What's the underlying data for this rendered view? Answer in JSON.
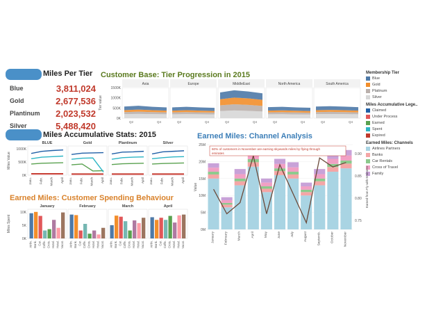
{
  "kpi": {
    "title": "Miles Per Tier",
    "items": [
      {
        "label": "Blue",
        "value": "3,811,024"
      },
      {
        "label": "Gold",
        "value": "2,677,536"
      },
      {
        "label": "Plantinum",
        "value": "2,023,532"
      },
      {
        "label": "Silver",
        "value": "5,488,420"
      }
    ]
  },
  "colors": {
    "blue": "#4e79a7",
    "gold": "#f28e2b",
    "platinum": "#bab0ac",
    "silver": "#d7d7d7",
    "claimed": "#1f5fa6",
    "under_process": "#e15759",
    "earned": "#59a14f",
    "spent": "#2bb5c4",
    "expired": "#c0392b",
    "airline": "#a9d4e3",
    "banks": "#f4a6a6",
    "car": "#8cc98c",
    "cross": "#f1a0c4",
    "family": "#c8a2d8",
    "title_green": "#5a7a1e",
    "title_orange": "#d9822b",
    "title_blue": "#3d7fb8"
  },
  "chart_data": [
    {
      "id": "tier-progression",
      "type": "area",
      "title": "Customer Base: Tier Progression in 2015",
      "ylabel": "Tier value",
      "yticks": [
        "1500K",
        "1000K",
        "500K",
        "0K"
      ],
      "xticks": [
        "Q2",
        "Q4"
      ],
      "regions": [
        "Asia",
        "Europe",
        "MiddleEast",
        "North America",
        "South America"
      ],
      "ylim": [
        0,
        1500
      ],
      "x": [
        "Q1",
        "Q2",
        "Q3",
        "Q4"
      ],
      "series_names": [
        "Silver",
        "Platinum",
        "Gold",
        "Blue"
      ],
      "regions_data": [
        {
          "name": "Asia",
          "series": [
            [
              200,
              210,
              200,
              190
            ],
            [
              100,
              110,
              100,
              95
            ],
            [
              90,
              100,
              90,
              85
            ],
            [
              180,
              190,
              170,
              160
            ]
          ]
        },
        {
          "name": "Europe",
          "series": [
            [
              190,
              200,
              190,
              185
            ],
            [
              95,
              100,
              95,
              90
            ],
            [
              85,
              90,
              85,
              80
            ],
            [
              160,
              170,
              160,
              150
            ]
          ]
        },
        {
          "name": "MiddleEast",
          "series": [
            [
              350,
              380,
              360,
              330
            ],
            [
              280,
              300,
              290,
              270
            ],
            [
              300,
              330,
              320,
              300
            ],
            [
              330,
              360,
              340,
              320
            ]
          ]
        },
        {
          "name": "North America",
          "series": [
            [
              190,
              195,
              185,
              180
            ],
            [
              95,
              100,
              95,
              90
            ],
            [
              85,
              90,
              85,
              80
            ],
            [
              170,
              175,
              165,
              160
            ]
          ]
        },
        {
          "name": "South America",
          "series": [
            [
              200,
              205,
              200,
              190
            ],
            [
              100,
              105,
              100,
              95
            ],
            [
              90,
              95,
              90,
              85
            ],
            [
              180,
              185,
              175,
              170
            ]
          ]
        }
      ]
    },
    {
      "id": "accumulative-stats",
      "type": "line",
      "title": "Miles Accumulative Stats: 2015",
      "ylabel": "Miles Value",
      "yticks": [
        "1000K",
        "500K",
        "0K"
      ],
      "ylim": [
        0,
        1100
      ],
      "tiers": [
        "BLUE",
        "Gold",
        "Plantinum",
        "Silver"
      ],
      "x": [
        "Janu.",
        "Febr.",
        "March",
        "April"
      ],
      "series_names": [
        "Claimed",
        "Under Process",
        "Earned",
        "Spent",
        "Expired"
      ],
      "tier_data": [
        {
          "name": "BLUE",
          "series": [
            [
              820,
              900,
              930,
              950
            ],
            [
              40,
              40,
              40,
              40
            ],
            [
              420,
              450,
              460,
              470
            ],
            [
              620,
              680,
              700,
              720
            ],
            [
              60,
              60,
              60,
              60
            ]
          ]
        },
        {
          "name": "Gold",
          "series": [
            [
              780,
              830,
              840,
              850
            ],
            [
              30,
              30,
              30,
              30
            ],
            [
              390,
              420,
              160,
              170
            ],
            [
              600,
              640,
              650,
              120
            ],
            [
              50,
              50,
              50,
              50
            ]
          ]
        },
        {
          "name": "Plantinum",
          "series": [
            [
              800,
              870,
              880,
              900
            ],
            [
              30,
              30,
              30,
              30
            ],
            [
              400,
              430,
              440,
              450
            ],
            [
              600,
              660,
              680,
              690
            ],
            [
              50,
              50,
              50,
              50
            ]
          ]
        },
        {
          "name": "Silver",
          "series": [
            [
              800,
              880,
              900,
              920
            ],
            [
              30,
              30,
              30,
              30
            ],
            [
              420,
              440,
              450,
              460
            ],
            [
              620,
              660,
              690,
              700
            ],
            [
              50,
              50,
              50,
              50
            ]
          ]
        }
      ]
    },
    {
      "id": "spending-behaviour",
      "type": "bar",
      "title": "Earned Miles: Customer Spending Behaviour",
      "ylabel": "Miles Spent",
      "yticks": [
        "10K",
        "5K",
        "0K"
      ],
      "ylim": [
        0,
        11
      ],
      "months": [
        "January",
        "February",
        "March",
        "April"
      ],
      "categories": [
        "Airlin.",
        "Bank.",
        "Car.",
        "Coffe.",
        "Crois.",
        "Hotel.",
        "Hotel.",
        "Vacat."
      ],
      "values": [
        [
          9.5,
          10,
          8.5,
          3,
          3.5,
          7,
          4,
          9.8
        ],
        [
          9,
          8.8,
          3,
          5.5,
          1.8,
          3,
          1.5,
          4
        ],
        [
          5,
          8.6,
          8.2,
          6.5,
          3,
          6.8,
          5.8,
          7.8
        ],
        [
          8,
          7,
          7.8,
          7,
          8.5,
          6,
          8.7,
          9
        ]
      ],
      "bar_colors": [
        "#4e79a7",
        "#f28e2b",
        "#e15759",
        "#76b7b2",
        "#59a14f",
        "#af7aa1",
        "#ff9da7",
        "#9c755f"
      ]
    },
    {
      "id": "channel-analysis",
      "type": "bar",
      "title": "Earned Miles: Channel Analysis",
      "ylabel": "Value",
      "y2label": "Earned from Fly with Emirates",
      "yticks": [
        "25M",
        "20M",
        "15M",
        "10M",
        "5M",
        "0M"
      ],
      "y2ticks": [
        "0.90",
        "0.85",
        "0.80",
        "0.75"
      ],
      "ylim": [
        0,
        25
      ],
      "y2lim": [
        0.73,
        0.92
      ],
      "categories": [
        "January",
        "February",
        "March",
        "April",
        "May",
        "June",
        "July",
        "August",
        "Septemb.",
        "October",
        "November"
      ],
      "series": [
        {
          "name": "Airlines Partners",
          "values": [
            15,
            6.5,
            13,
            18.5,
            11,
            16,
            15,
            10,
            13,
            17,
            18
          ]
        },
        {
          "name": "Banks",
          "values": [
            1.2,
            0.8,
            1.2,
            1.3,
            1.0,
            1.2,
            1.2,
            1.0,
            1.2,
            1.4,
            1.4
          ]
        },
        {
          "name": "Car Rentals",
          "values": [
            0.8,
            0.5,
            0.8,
            0.9,
            0.7,
            0.8,
            0.8,
            0.7,
            0.8,
            0.9,
            0.9
          ]
        },
        {
          "name": "Cross of Travel",
          "values": [
            1.2,
            0.8,
            1.3,
            1.6,
            1.1,
            1.3,
            1.3,
            1.0,
            1.3,
            1.5,
            1.5
          ]
        },
        {
          "name": "Family",
          "values": [
            1.3,
            0.9,
            1.5,
            1.7,
            1.2,
            1.5,
            1.5,
            1.1,
            1.5,
            1.6,
            1.6
          ]
        }
      ],
      "line": [
        0.82,
        0.765,
        0.79,
        0.895,
        0.765,
        0.875,
        0.81,
        0.745,
        0.89,
        0.87,
        0.88
      ],
      "annotation": "60% of customers in November are earning skywards miles by flying through emirates"
    }
  ],
  "legend": {
    "tier_title": "Membership Tier",
    "tiers": [
      "Blue",
      "Gold",
      "Platinum",
      "Silver"
    ],
    "acc_title": "Miles Accumulative Lege..",
    "acc": [
      "Claimed",
      "Under Process",
      "Earned",
      "Spent",
      "Expired"
    ],
    "channel_title": "Earned Miles: Channels",
    "channels": [
      "Airlines Partners",
      "Banks",
      "Car Rentals",
      "Cross of Travel",
      "Family"
    ]
  }
}
